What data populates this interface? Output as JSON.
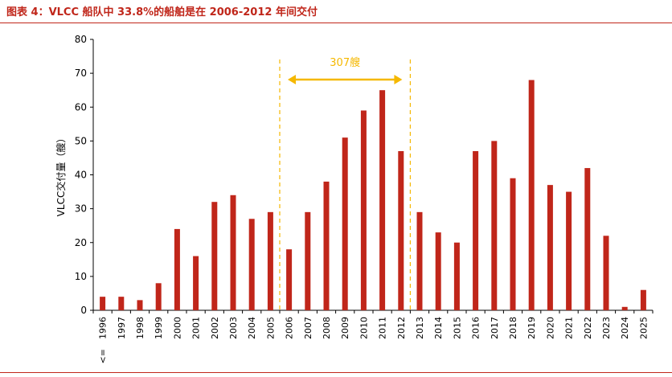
{
  "header": {
    "title": "图表 4：VLCC 船队中 33.8%的船舶是在 2006-2012 年间交付"
  },
  "colors": {
    "title": "#c0261a",
    "bar": "#c0261a",
    "annotation": "#f5b800",
    "axis": "#000000"
  },
  "chart_data": {
    "type": "bar",
    "categories": [
      "1996 <=",
      "1997",
      "1998",
      "1999",
      "2000",
      "2001",
      "2002",
      "2003",
      "2004",
      "2005",
      "2006",
      "2007",
      "2008",
      "2009",
      "2010",
      "2011",
      "2012",
      "2013",
      "2014",
      "2015",
      "2016",
      "2017",
      "2018",
      "2019",
      "2020",
      "2021",
      "2022",
      "2023",
      "2024",
      "2025"
    ],
    "values": [
      4,
      4,
      3,
      8,
      24,
      16,
      32,
      34,
      27,
      29,
      18,
      29,
      38,
      51,
      59,
      65,
      47,
      29,
      23,
      20,
      47,
      50,
      39,
      68,
      37,
      35,
      42,
      22,
      1,
      6
    ],
    "xlabel": "",
    "ylabel": "VLCC交付量（艘）",
    "ylim": [
      0,
      80
    ],
    "yticks": [
      0,
      10,
      20,
      30,
      40,
      50,
      60,
      70,
      80
    ],
    "grid": false,
    "annotation": {
      "text": "307艘",
      "from_category": "2006",
      "to_category": "2012"
    }
  }
}
